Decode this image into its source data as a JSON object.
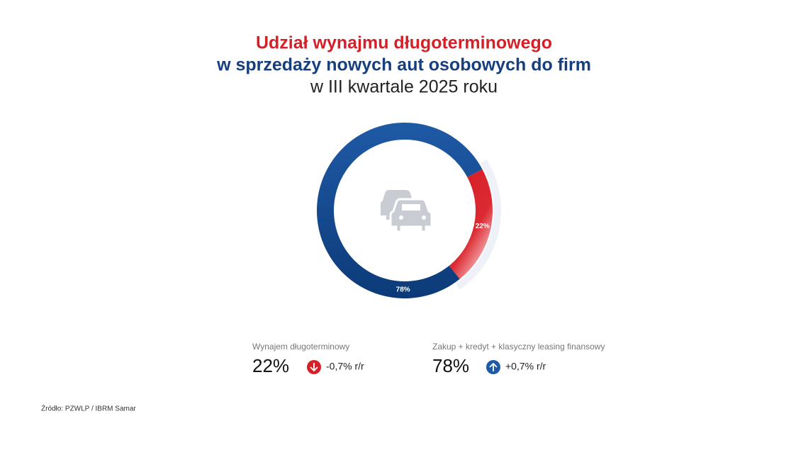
{
  "chart_data": {
    "type": "pie",
    "title": "Udział wynajmu długoterminowego",
    "subtitle": "w sprzedaży nowych aut osobowych do firm",
    "period": "w III kwartale 2025 roku",
    "categories": [
      "Wynajem długoterminowy",
      "Zakup + kredyt + klasyczny leasing finansowy"
    ],
    "values": [
      22,
      78
    ],
    "value_labels": [
      "22%",
      "78%"
    ],
    "colors": [
      "#1f5aa6",
      "#d71f27"
    ],
    "change_labels": [
      "-0,7% r/r",
      "+0,7% r/r"
    ],
    "source": "Źródło: PZWLP / IBRM Samar"
  }
}
